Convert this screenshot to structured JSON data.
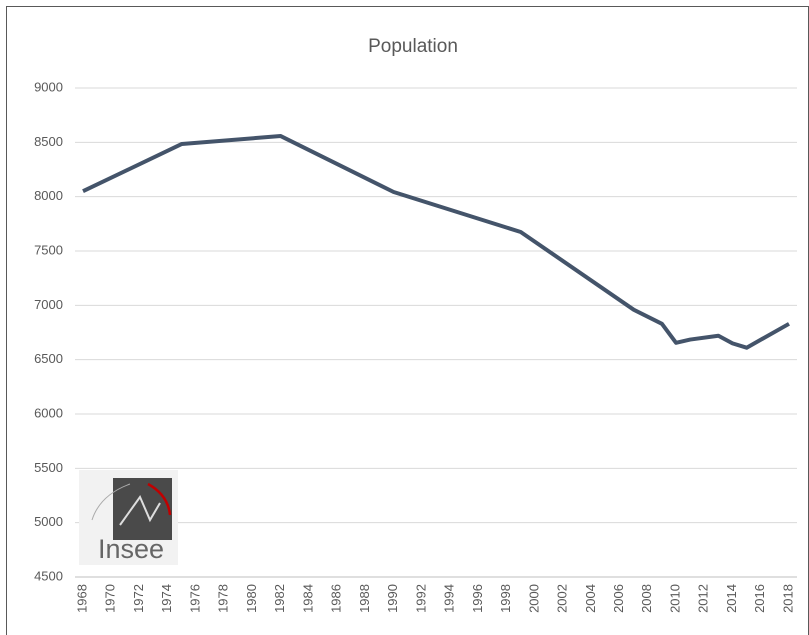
{
  "chart_data": {
    "type": "line",
    "title": "Population",
    "logo": "Insee",
    "x": [
      1968,
      1975,
      1982,
      1990,
      1999,
      2007,
      2009,
      2010,
      2011,
      2013,
      2014,
      2015,
      2018
    ],
    "series": [
      {
        "name": "Population",
        "color": "#44546a",
        "values": [
          8050,
          8485,
          8558,
          8043,
          7675,
          6960,
          6830,
          6655,
          6685,
          6720,
          6650,
          6610,
          6830
        ]
      }
    ],
    "xlim": [
      1968,
      2018
    ],
    "xticks": [
      1968,
      1970,
      1972,
      1974,
      1976,
      1978,
      1980,
      1982,
      1984,
      1986,
      1988,
      1990,
      1992,
      1994,
      1996,
      1998,
      2000,
      2002,
      2004,
      2006,
      2008,
      2010,
      2012,
      2014,
      2016,
      2018
    ],
    "ylim": [
      4500,
      9000
    ],
    "yticks": [
      4500,
      5000,
      5500,
      6000,
      6500,
      7000,
      7500,
      8000,
      8500,
      9000
    ],
    "grid": true
  }
}
